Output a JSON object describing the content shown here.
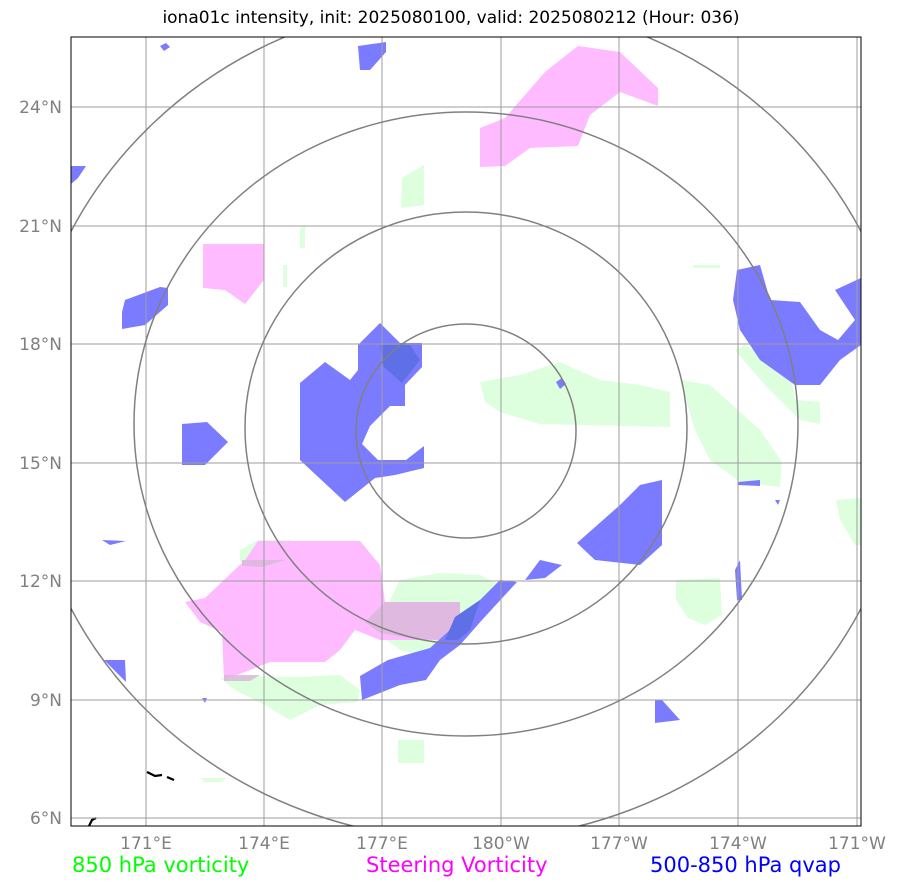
{
  "title": "iona01c intensity, init: 2025080100, valid: 2025080212 (Hour: 036)",
  "map": {
    "lon_ticks": [
      "171°E",
      "174°E",
      "177°E",
      "180°W",
      "177°W",
      "174°W",
      "171°W"
    ],
    "lat_ticks": [
      "24°N",
      "21°N",
      "18°N",
      "15°N",
      "12°N",
      "9°N",
      "6°N"
    ],
    "range_rings_count": 4,
    "gridlines": true
  },
  "legend": {
    "vort850": {
      "label": "850 hPa vorticity",
      "color": "#00ff00"
    },
    "steering": {
      "label": "Steering Vorticity",
      "color": "#ff00ff"
    },
    "qvap": {
      "label": "500-850 hPa qvap",
      "color": "#0000ff"
    }
  },
  "colors": {
    "vort850_fill": "#ddffdd",
    "steering_fill": "#ffbbff",
    "qvap_fill": "#7b7bff",
    "grid": "#999999",
    "ring": "#808080",
    "coast": "#000000"
  }
}
